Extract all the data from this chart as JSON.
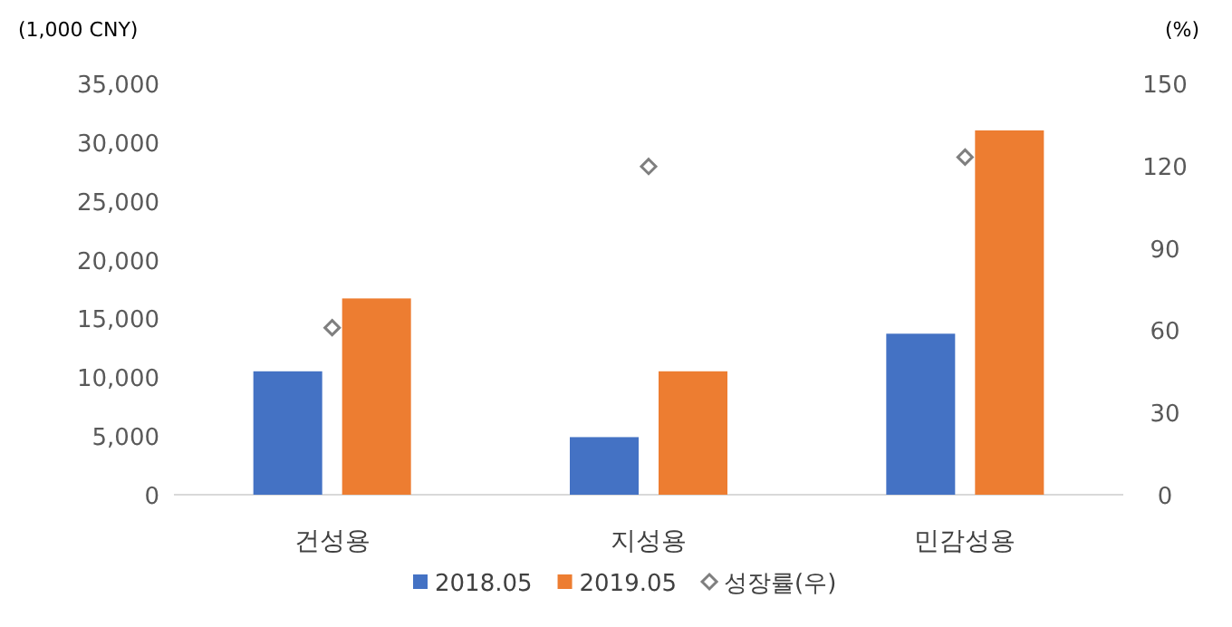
{
  "chart_data": {
    "type": "bar",
    "categories": [
      "건성용",
      "지성용",
      "민감성용"
    ],
    "series": [
      {
        "name": "2018.05",
        "color": "#4472c4",
        "values": [
          10500,
          4900,
          13700
        ]
      },
      {
        "name": "2019.05",
        "color": "#ed7d31",
        "values": [
          16700,
          10500,
          31000
        ]
      },
      {
        "name": "성장률(우)",
        "type": "scatter",
        "axis": "y2",
        "marker": "diamond",
        "color": "#7f7f7f",
        "values": [
          60.9,
          119.7,
          123.1
        ]
      }
    ],
    "ylabel": "(1,000 CNY)",
    "y2label": "(%)",
    "ylim": [
      0,
      35000
    ],
    "yticks": [
      {
        "value": 0,
        "label": "0"
      },
      {
        "value": 5000,
        "label": "5,000"
      },
      {
        "value": 10000,
        "label": "10,000"
      },
      {
        "value": 15000,
        "label": "15,000"
      },
      {
        "value": 20000,
        "label": "20,000"
      },
      {
        "value": 25000,
        "label": "25,000"
      },
      {
        "value": 30000,
        "label": "30,000"
      },
      {
        "value": 35000,
        "label": "35,000"
      }
    ],
    "y2lim": [
      0,
      150
    ],
    "y2ticks": [
      0,
      30,
      60,
      90,
      120,
      150
    ],
    "legend": "bottom",
    "grid": false
  }
}
